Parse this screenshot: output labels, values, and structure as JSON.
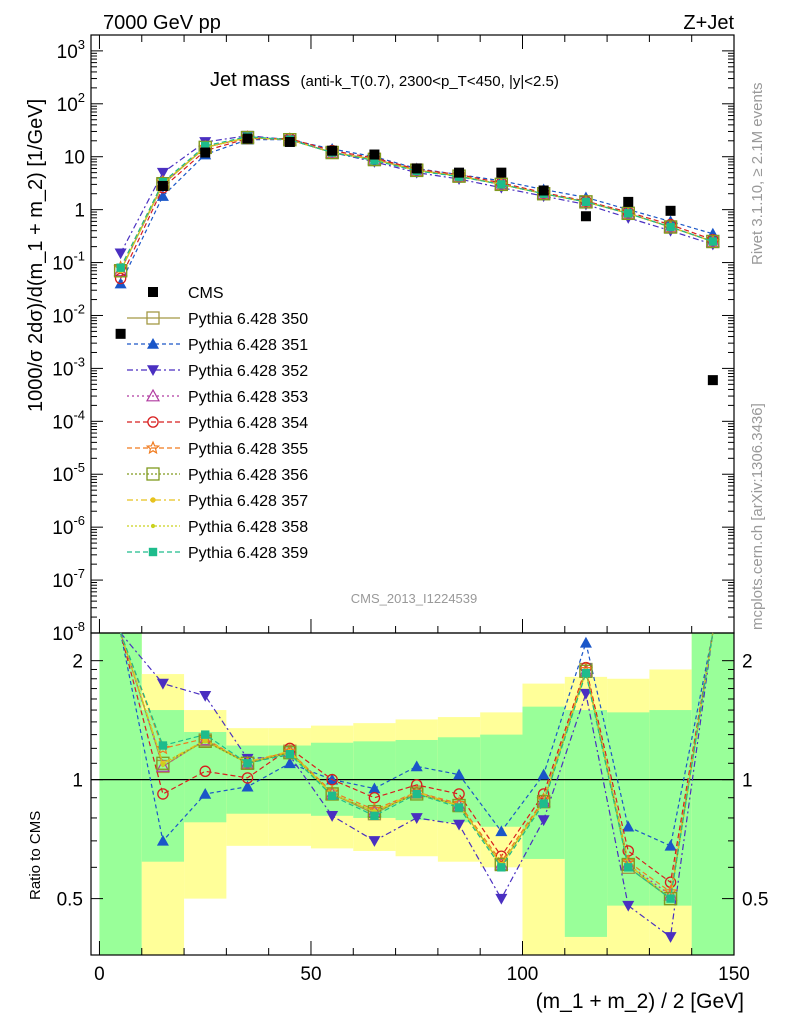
{
  "chart_data": {
    "type": "scatter",
    "header_left": "7000 GeV pp",
    "header_right": "Z+Jet",
    "title_main": "Jet mass",
    "title_sub": "(anti-k_T(0.7), 2300<p_T<450, |y|<2.5)",
    "analysis_id": "CMS_2013_I1224539",
    "side_label_top": "Rivet 3.1.10, ≥ 2.1M events",
    "side_label_bottom": "mcplots.cern.ch [arXiv:1306.3436]",
    "ylabel": "1000/σ 2dσ)/d(m_1 + m_2) [1/GeV]",
    "xlabel": "(m_1 + m_2) / 2 [GeV]",
    "ratio_ylabel": "Ratio to CMS",
    "x_ticks": [
      "0",
      "50",
      "100",
      "150"
    ],
    "y_tick_labels": [
      "10^3",
      "10^2",
      "10",
      "1",
      "10^-1",
      "10^-2",
      "10^-3",
      "10^-4",
      "10^-5",
      "10^-6",
      "10^-7",
      "10^-8"
    ],
    "ratio_tick_labels": [
      "2",
      "1",
      "0.5"
    ],
    "xlim": [
      -2,
      150
    ],
    "ylim_log10": [
      -8,
      3.3
    ],
    "ratio_ylim": [
      0.36,
      2.35
    ],
    "x": [
      5,
      15,
      25,
      35,
      45,
      55,
      65,
      75,
      85,
      95,
      105,
      115,
      125,
      135,
      145
    ],
    "data_values": [
      0.0045,
      2.8,
      12,
      22,
      19,
      13,
      11,
      6,
      5,
      5,
      2.3,
      0.75,
      1.4,
      0.95,
      0.0006
    ],
    "bands": [
      {
        "x0": 0,
        "x1": 10,
        "g": [
          0.36,
          2.35
        ],
        "y": [
          0.36,
          2.35
        ]
      },
      {
        "x0": 10,
        "x1": 20,
        "g": [
          0.62,
          1.5
        ],
        "y": [
          0.36,
          1.85
        ]
      },
      {
        "x0": 20,
        "x1": 30,
        "g": [
          0.78,
          1.32
        ],
        "y": [
          0.5,
          1.5
        ]
      },
      {
        "x0": 30,
        "x1": 40,
        "g": [
          0.82,
          1.22
        ],
        "y": [
          0.68,
          1.35
        ]
      },
      {
        "x0": 40,
        "x1": 50,
        "g": [
          0.82,
          1.22
        ],
        "y": [
          0.68,
          1.35
        ]
      },
      {
        "x0": 50,
        "x1": 60,
        "g": [
          0.81,
          1.24
        ],
        "y": [
          0.67,
          1.37
        ]
      },
      {
        "x0": 60,
        "x1": 70,
        "g": [
          0.8,
          1.25
        ],
        "y": [
          0.66,
          1.39
        ]
      },
      {
        "x0": 70,
        "x1": 80,
        "g": [
          0.79,
          1.26
        ],
        "y": [
          0.64,
          1.42
        ]
      },
      {
        "x0": 80,
        "x1": 90,
        "g": [
          0.78,
          1.28
        ],
        "y": [
          0.62,
          1.44
        ]
      },
      {
        "x0": 90,
        "x1": 100,
        "g": [
          0.76,
          1.3
        ],
        "y": [
          0.6,
          1.48
        ]
      },
      {
        "x0": 100,
        "x1": 110,
        "g": [
          0.63,
          1.53
        ],
        "y": [
          0.36,
          1.75
        ]
      },
      {
        "x0": 110,
        "x1": 120,
        "g": [
          0.4,
          1.5
        ],
        "y": [
          0.36,
          1.82
        ]
      },
      {
        "x0": 120,
        "x1": 130,
        "g": [
          0.48,
          1.48
        ],
        "y": [
          0.36,
          1.8
        ]
      },
      {
        "x0": 130,
        "x1": 140,
        "g": [
          0.48,
          1.5
        ],
        "y": [
          0.36,
          1.9
        ]
      },
      {
        "x0": 140,
        "x1": 150,
        "g": [
          0.36,
          2.35
        ],
        "y": [
          0.36,
          2.35
        ]
      }
    ],
    "data_label": "CMS",
    "series": [
      {
        "name": "Pythia 6.428 350",
        "color": "#a39945",
        "marker": "square-open",
        "dash": "",
        "values": [
          0.07,
          3.0,
          15,
          23,
          21,
          12,
          9,
          5.6,
          4.3,
          3.0,
          2.0,
          1.4,
          0.85,
          0.47,
          0.25
        ],
        "ratio": [
          2.35,
          1.08,
          1.26,
          1.1,
          1.18,
          0.92,
          0.82,
          0.93,
          0.86,
          0.61,
          0.88,
          1.9,
          0.6,
          0.5,
          2.35
        ]
      },
      {
        "name": "Pythia 6.428 351",
        "color": "#1a56c8",
        "marker": "triangle-up",
        "dash": "4,3",
        "values": [
          0.04,
          1.8,
          11,
          21,
          21,
          14,
          10,
          6,
          4.6,
          3.5,
          2.4,
          1.7,
          1.0,
          0.6,
          0.35
        ],
        "ratio": [
          2.35,
          0.7,
          0.92,
          0.96,
          1.1,
          1.0,
          0.95,
          1.08,
          1.03,
          0.74,
          1.03,
          2.22,
          0.76,
          0.68,
          2.35
        ]
      },
      {
        "name": "Pythia 6.428 352",
        "color": "#4a2fc1",
        "marker": "triangle-down",
        "dash": "6,3,2,3",
        "values": [
          0.15,
          5.0,
          19,
          25,
          21,
          12,
          8,
          5,
          3.8,
          2.6,
          1.8,
          1.25,
          0.7,
          0.4,
          0.22
        ],
        "ratio": [
          2.35,
          1.75,
          1.63,
          1.13,
          1.15,
          0.81,
          0.7,
          0.8,
          0.77,
          0.5,
          0.79,
          1.65,
          0.48,
          0.4,
          2.35
        ]
      },
      {
        "name": "Pythia 6.428 353",
        "color": "#b03aa0",
        "marker": "triangle-open",
        "dash": "2,3",
        "values": [
          0.07,
          3.0,
          15,
          23,
          21,
          12,
          9,
          5.6,
          4.3,
          3.0,
          2.0,
          1.4,
          0.85,
          0.47,
          0.25
        ],
        "ratio": [
          2.35,
          1.08,
          1.26,
          1.1,
          1.18,
          0.92,
          0.83,
          0.93,
          0.86,
          0.61,
          0.88,
          1.88,
          0.61,
          0.51,
          2.35
        ]
      },
      {
        "name": "Pythia 6.428 354",
        "color": "#d81e1e",
        "marker": "circle-open",
        "dash": "5,3",
        "values": [
          0.05,
          2.6,
          13,
          22,
          22,
          13,
          9.5,
          5.8,
          4.6,
          3.2,
          2.1,
          1.45,
          0.9,
          0.52,
          0.27
        ],
        "ratio": [
          2.35,
          0.92,
          1.05,
          1.01,
          1.2,
          1.0,
          0.9,
          0.97,
          0.92,
          0.64,
          0.92,
          1.92,
          0.66,
          0.55,
          2.35
        ]
      },
      {
        "name": "Pythia 6.428 355",
        "color": "#f07a1e",
        "marker": "star",
        "dash": "5,3",
        "values": [
          0.08,
          3.3,
          15,
          23,
          21,
          12,
          8.8,
          5.5,
          4.3,
          3.0,
          2.0,
          1.4,
          0.85,
          0.47,
          0.25
        ],
        "ratio": [
          2.35,
          1.2,
          1.27,
          1.1,
          1.18,
          0.93,
          0.84,
          0.93,
          0.87,
          0.62,
          0.89,
          1.9,
          0.62,
          0.52,
          2.35
        ]
      },
      {
        "name": "Pythia 6.428 356",
        "color": "#809a1e",
        "marker": "square-open",
        "dash": "2,2",
        "values": [
          0.07,
          3.1,
          15,
          23,
          21,
          12,
          8.8,
          5.5,
          4.3,
          3.0,
          2.0,
          1.4,
          0.85,
          0.47,
          0.25
        ],
        "ratio": [
          2.35,
          1.1,
          1.25,
          1.1,
          1.17,
          0.92,
          0.83,
          0.92,
          0.86,
          0.61,
          0.88,
          1.88,
          0.61,
          0.5,
          2.35
        ]
      },
      {
        "name": "Pythia 6.428 357",
        "color": "#e7c21e",
        "marker": "small-star",
        "dash": "6,3,2,3",
        "values": [
          0.07,
          3.1,
          15,
          23,
          21,
          12,
          8.8,
          5.5,
          4.3,
          3.0,
          2.0,
          1.4,
          0.85,
          0.47,
          0.25
        ],
        "ratio": [
          2.35,
          1.1,
          1.26,
          1.11,
          1.18,
          0.92,
          0.83,
          0.93,
          0.86,
          0.61,
          0.88,
          1.89,
          0.61,
          0.5,
          2.35
        ]
      },
      {
        "name": "Pythia 6.428 358",
        "color": "#c9d21e",
        "marker": "dot",
        "dash": "2,2",
        "values": [
          0.07,
          3.0,
          15,
          23,
          21,
          12,
          8.8,
          5.5,
          4.3,
          3.0,
          2.0,
          1.4,
          0.85,
          0.47,
          0.25
        ],
        "ratio": [
          2.35,
          1.09,
          1.25,
          1.1,
          1.17,
          0.92,
          0.83,
          0.92,
          0.86,
          0.61,
          0.88,
          1.88,
          0.61,
          0.5,
          2.35
        ]
      },
      {
        "name": "Pythia 6.428 359",
        "color": "#1ebc8c",
        "marker": "square-filled",
        "dash": "5,3",
        "values": [
          0.08,
          3.3,
          16,
          24,
          21,
          12,
          8.5,
          5.4,
          4.2,
          3.0,
          2.0,
          1.4,
          0.85,
          0.47,
          0.25
        ],
        "ratio": [
          2.35,
          1.22,
          1.3,
          1.1,
          1.16,
          0.91,
          0.81,
          0.92,
          0.85,
          0.6,
          0.87,
          1.86,
          0.6,
          0.5,
          2.35
        ]
      }
    ]
  }
}
